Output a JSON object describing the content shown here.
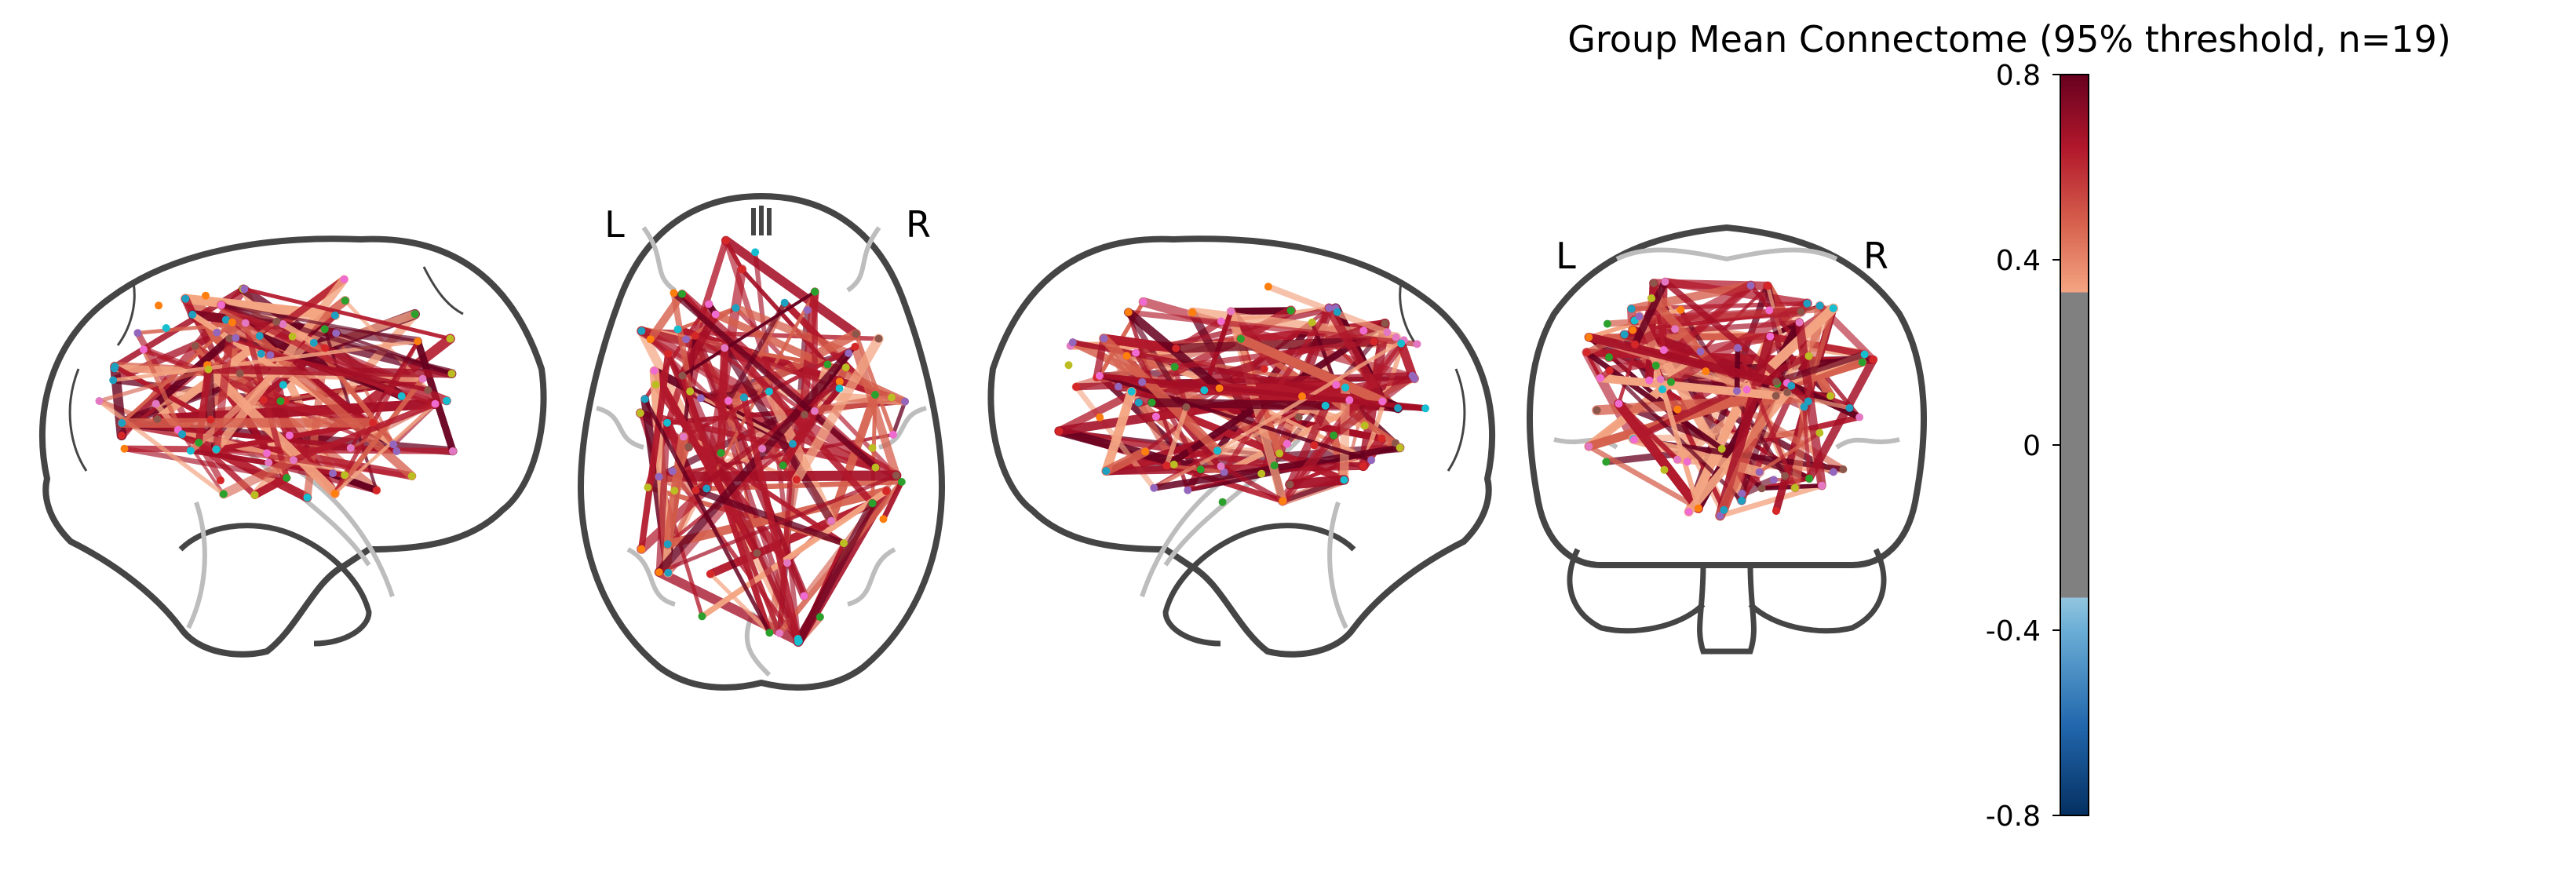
{
  "figure": {
    "title": "Group Mean Connectome (95% threshold, n=19)",
    "views": [
      {
        "id": "left-sagittal"
      },
      {
        "id": "axial",
        "left_label": "L",
        "right_label": "R"
      },
      {
        "id": "right-sagittal"
      },
      {
        "id": "coronal",
        "left_label": "L",
        "right_label": "R"
      }
    ]
  },
  "colorbar": {
    "ticks": [
      "0.8",
      "0.4",
      "0",
      "-0.4",
      "-0.8"
    ],
    "range": [
      -0.8,
      0.8
    ],
    "threshold_range": [
      -0.33,
      0.33
    ],
    "colors": {
      "positive_high": "#67001f",
      "positive_mid": "#b2182b",
      "positive_low": "#f4a582",
      "thresholded": "#808080",
      "negative_low": "#92c5de",
      "negative_mid": "#2166ac",
      "negative_high": "#053061"
    }
  },
  "node_colors": [
    "#2ca02c",
    "#1fa0c0",
    "#e377c2",
    "#d62728",
    "#ff7f0e",
    "#bcbd22",
    "#9467bd",
    "#17becf",
    "#8c564b",
    "#f06bd0"
  ]
}
